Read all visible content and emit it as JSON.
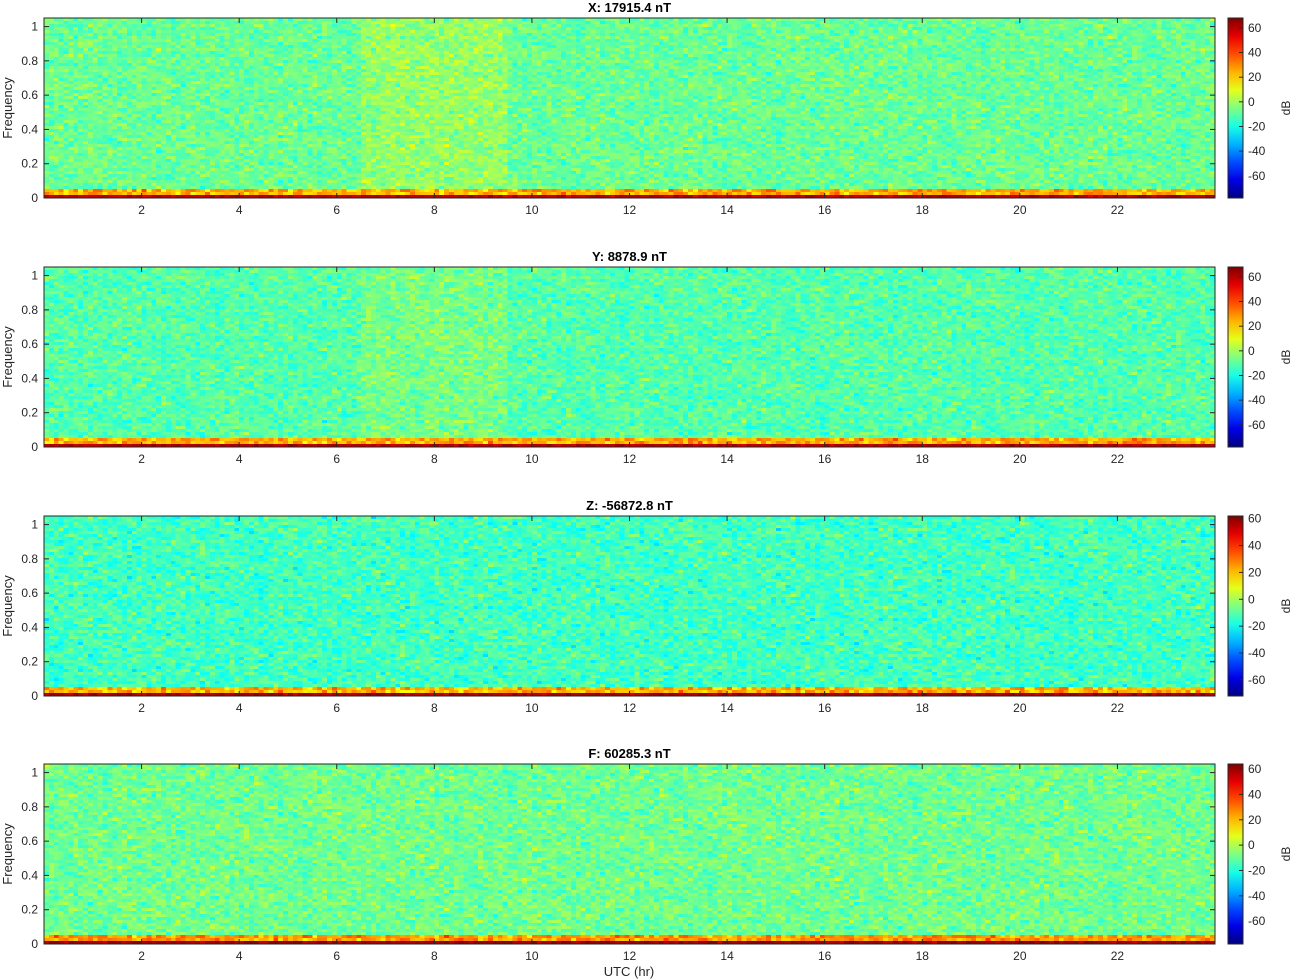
{
  "figure": {
    "xlabel": "UTC (hr)"
  },
  "chart_data": [
    {
      "type": "heatmap",
      "title": "X: 17915.4 nT",
      "ylabel": "Frequency",
      "colorbar_label": "dB",
      "xlim": [
        0,
        24
      ],
      "ylim": [
        0,
        1.05
      ],
      "clim": [
        -78,
        68
      ],
      "x_ticks": [
        "2",
        "4",
        "6",
        "8",
        "10",
        "12",
        "14",
        "16",
        "18",
        "20",
        "22"
      ],
      "y_ticks": [
        "0",
        "0.2",
        "0.4",
        "0.6",
        "0.8",
        "1"
      ],
      "colorbar_ticks": [
        "60",
        "40",
        "20",
        "0",
        "-20",
        "-40",
        "-60"
      ],
      "base_level_db": -8,
      "low_freq_band": {
        "top_frequency": 0.05,
        "level_db": 35
      },
      "elevated_interval": {
        "start_hr": 6.5,
        "end_hr": 9.5,
        "extra_db": 6
      }
    },
    {
      "type": "heatmap",
      "title": "Y: 8878.9 nT",
      "ylabel": "Frequency",
      "colorbar_label": "dB",
      "xlim": [
        0,
        24
      ],
      "ylim": [
        0,
        1.05
      ],
      "clim": [
        -78,
        68
      ],
      "x_ticks": [
        "2",
        "4",
        "6",
        "8",
        "10",
        "12",
        "14",
        "16",
        "18",
        "20",
        "22"
      ],
      "y_ticks": [
        "0",
        "0.2",
        "0.4",
        "0.6",
        "0.8",
        "1"
      ],
      "colorbar_ticks": [
        "60",
        "40",
        "20",
        "0",
        "-20",
        "-40",
        "-60"
      ],
      "base_level_db": -11,
      "low_freq_band": {
        "top_frequency": 0.05,
        "level_db": 35
      },
      "elevated_interval": {
        "start_hr": 6.5,
        "end_hr": 9.5,
        "extra_db": 5
      }
    },
    {
      "type": "heatmap",
      "title": "Z: -56872.8 nT",
      "ylabel": "Frequency",
      "colorbar_label": "dB",
      "xlim": [
        0,
        24
      ],
      "ylim": [
        0,
        1.05
      ],
      "clim": [
        -72,
        62
      ],
      "x_ticks": [
        "2",
        "4",
        "6",
        "8",
        "10",
        "12",
        "14",
        "16",
        "18",
        "20",
        "22"
      ],
      "y_ticks": [
        "0",
        "0.2",
        "0.4",
        "0.6",
        "0.8",
        "1"
      ],
      "colorbar_ticks": [
        "60",
        "40",
        "20",
        "0",
        "-20",
        "-40",
        "-60"
      ],
      "base_level_db": -13,
      "low_freq_band": {
        "top_frequency": 0.06,
        "level_db": 32
      },
      "elevated_interval": null
    },
    {
      "type": "heatmap",
      "title": "F: 60285.3 nT",
      "ylabel": "Frequency",
      "colorbar_label": "dB",
      "xlim": [
        0,
        24
      ],
      "ylim": [
        0,
        1.05
      ],
      "clim": [
        -78,
        64
      ],
      "x_ticks": [
        "2",
        "4",
        "6",
        "8",
        "10",
        "12",
        "14",
        "16",
        "18",
        "20",
        "22"
      ],
      "y_ticks": [
        "0",
        "0.2",
        "0.4",
        "0.6",
        "0.8",
        "1"
      ],
      "colorbar_ticks": [
        "60",
        "40",
        "20",
        "0",
        "-20",
        "-40",
        "-60"
      ],
      "base_level_db": -9,
      "low_freq_band": {
        "top_frequency": 0.05,
        "level_db": 35
      },
      "elevated_interval": null
    }
  ]
}
